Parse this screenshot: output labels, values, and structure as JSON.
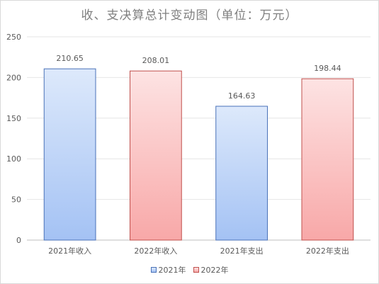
{
  "chart_data": {
    "type": "bar",
    "title": "收、支决算总计变动图（单位：万元）",
    "categories": [
      "2021年收入",
      "2022年收入",
      "2021年支出",
      "2022年支出"
    ],
    "values": [
      210.65,
      208.01,
      164.63,
      198.44
    ],
    "value_labels": [
      "210.65",
      "208.01",
      "164.63",
      "198.44"
    ],
    "bar_series": [
      "2021年",
      "2022年",
      "2021年",
      "2022年"
    ],
    "ylim": [
      0,
      250
    ],
    "yticks": [
      "0",
      "50",
      "100",
      "150",
      "200",
      "250"
    ],
    "grid": true,
    "legend": {
      "placement": "bottom",
      "entries": [
        {
          "name": "2021年",
          "fill_top": "#dde9fb",
          "fill_bottom": "#a4c2f4",
          "stroke": "#4a72b8"
        },
        {
          "name": "2022年",
          "fill_top": "#fde3e3",
          "fill_bottom": "#f8a8a8",
          "stroke": "#c0504d"
        }
      ]
    }
  }
}
